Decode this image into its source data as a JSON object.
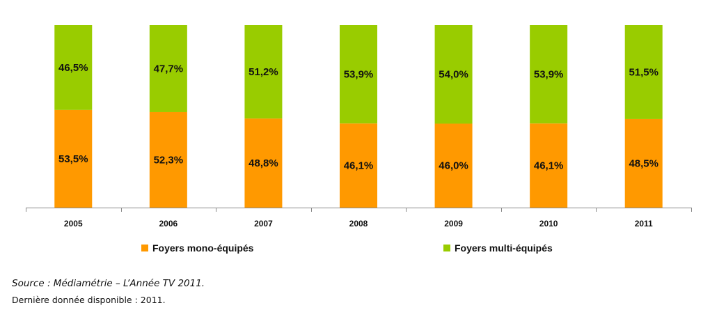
{
  "chart_data": {
    "type": "bar",
    "stacked": true,
    "normalized_percent": true,
    "categories": [
      "2005",
      "2006",
      "2007",
      "2008",
      "2009",
      "2010",
      "2011"
    ],
    "series": [
      {
        "name": "Foyers mono-équipés",
        "color": "#FF9900",
        "values": [
          53.5,
          52.3,
          48.8,
          46.1,
          46.0,
          46.1,
          48.5
        ],
        "labels": [
          "53,5%",
          "52,3%",
          "48,8%",
          "46,1%",
          "46,0%",
          "46,1%",
          "48,5%"
        ]
      },
      {
        "name": "Foyers multi-équipés",
        "color": "#99CC00",
        "values": [
          46.5,
          47.7,
          51.2,
          53.9,
          54.0,
          53.9,
          51.5
        ],
        "labels": [
          "46,5%",
          "47,7%",
          "51,2%",
          "53,9%",
          "54,0%",
          "53,9%",
          "51,5%"
        ]
      }
    ],
    "ylim": [
      0,
      100
    ],
    "y_axis_visible": false,
    "grid": false,
    "legend_position": "bottom"
  },
  "footer": {
    "source": "Source : Médiamétrie – L’Année TV 2011.",
    "note": "Dernière donnée disponible : 2011."
  }
}
